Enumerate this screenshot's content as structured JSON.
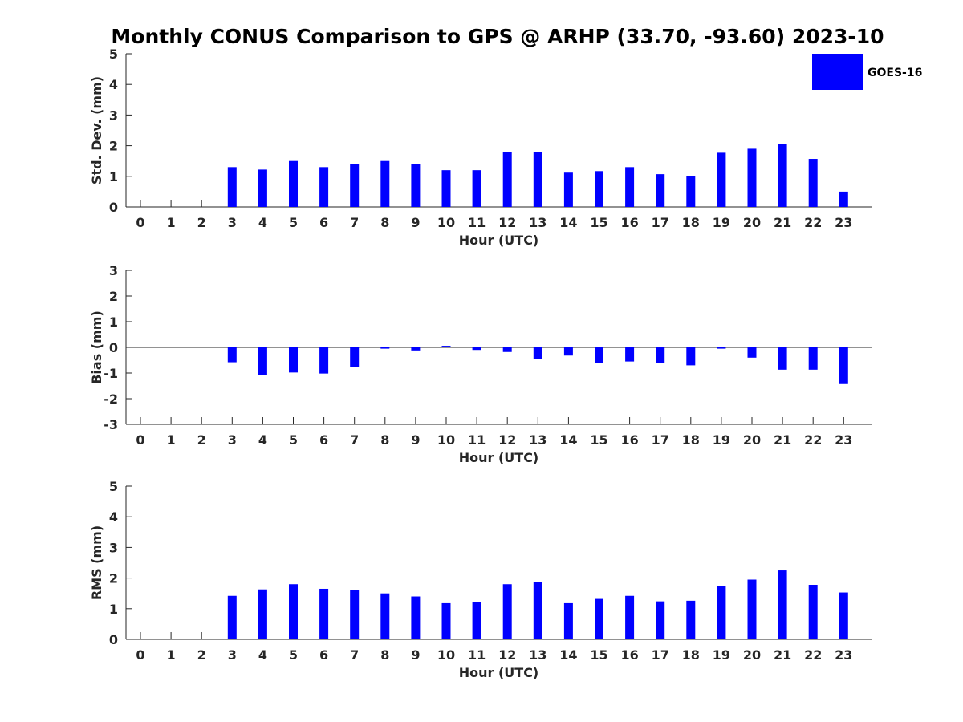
{
  "title": "Monthly CONUS Comparison to GPS @ ARHP (33.70, -93.60) 2023-10",
  "legend": {
    "label": "GOES-16",
    "color": "#0000ff"
  },
  "chart_data": [
    {
      "type": "bar",
      "xlabel": "Hour (UTC)",
      "ylabel": "Std. Dev. (mm)",
      "ylim": [
        0,
        5
      ],
      "yticks": [
        0,
        1,
        2,
        3,
        4,
        5
      ],
      "categories": [
        0,
        1,
        2,
        3,
        4,
        5,
        6,
        7,
        8,
        9,
        10,
        11,
        12,
        13,
        14,
        15,
        16,
        17,
        18,
        19,
        20,
        21,
        22,
        23
      ],
      "series": [
        {
          "name": "GOES-16",
          "values": [
            null,
            null,
            null,
            1.3,
            1.22,
            1.5,
            1.3,
            1.4,
            1.5,
            1.4,
            1.2,
            1.2,
            1.8,
            1.8,
            1.12,
            1.17,
            1.3,
            1.07,
            1.01,
            1.77,
            1.9,
            2.05,
            1.57,
            0.5
          ]
        }
      ]
    },
    {
      "type": "bar",
      "xlabel": "Hour (UTC)",
      "ylabel": "Bias (mm)",
      "ylim": [
        -3,
        3
      ],
      "yticks": [
        -3,
        -2,
        -1,
        0,
        1,
        2,
        3
      ],
      "categories": [
        0,
        1,
        2,
        3,
        4,
        5,
        6,
        7,
        8,
        9,
        10,
        11,
        12,
        13,
        14,
        15,
        16,
        17,
        18,
        19,
        20,
        21,
        22,
        23
      ],
      "series": [
        {
          "name": "GOES-16",
          "values": [
            null,
            null,
            null,
            -0.58,
            -1.08,
            -0.98,
            -1.02,
            -0.78,
            -0.05,
            -0.12,
            0.06,
            -0.1,
            -0.18,
            -0.45,
            -0.32,
            -0.6,
            -0.55,
            -0.6,
            -0.7,
            -0.05,
            -0.4,
            -0.87,
            -0.87,
            -1.43
          ]
        }
      ]
    },
    {
      "type": "bar",
      "xlabel": "Hour (UTC)",
      "ylabel": "RMS (mm)",
      "ylim": [
        0,
        5
      ],
      "yticks": [
        0,
        1,
        2,
        3,
        4,
        5
      ],
      "categories": [
        0,
        1,
        2,
        3,
        4,
        5,
        6,
        7,
        8,
        9,
        10,
        11,
        12,
        13,
        14,
        15,
        16,
        17,
        18,
        19,
        20,
        21,
        22,
        23
      ],
      "series": [
        {
          "name": "GOES-16",
          "values": [
            null,
            null,
            null,
            1.42,
            1.63,
            1.8,
            1.65,
            1.6,
            1.5,
            1.4,
            1.18,
            1.22,
            1.8,
            1.86,
            1.18,
            1.32,
            1.42,
            1.24,
            1.26,
            1.75,
            1.95,
            2.25,
            1.78,
            1.53
          ]
        }
      ]
    }
  ]
}
